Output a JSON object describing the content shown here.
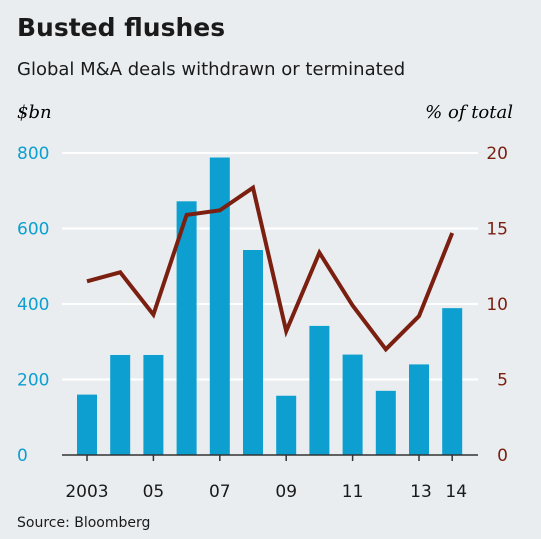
{
  "chart_data": {
    "type": "bar",
    "title": "Busted flushes",
    "subtitle": "Global M&A deals withdrawn or terminated",
    "source": "Source: Bloomberg",
    "left_axis": {
      "unit": "$bn",
      "ylim": [
        0,
        800
      ],
      "ticks": [
        "0",
        "200",
        "400",
        "600",
        "800"
      ],
      "tick_values": [
        0,
        200,
        400,
        600,
        800
      ]
    },
    "right_axis": {
      "unit": "% of total",
      "ylim": [
        0,
        20
      ],
      "ticks": [
        "0",
        "5",
        "10",
        "15",
        "20"
      ],
      "tick_values": [
        0,
        5,
        10,
        15,
        20
      ]
    },
    "x": [
      2003,
      2004,
      2005,
      2006,
      2007,
      2008,
      2009,
      2010,
      2011,
      2012,
      2013,
      2014
    ],
    "x_tick_labels": [
      {
        "year": 2003,
        "label": "2003"
      },
      {
        "year": 2005,
        "label": "05"
      },
      {
        "year": 2007,
        "label": "07"
      },
      {
        "year": 2009,
        "label": "09"
      },
      {
        "year": 2011,
        "label": "11"
      },
      {
        "year": 2013,
        "label": "13"
      },
      {
        "year": 2014,
        "label": "14"
      }
    ],
    "grid": true,
    "series": [
      {
        "type": "bar",
        "axis": "left",
        "values": [
          160,
          265,
          265,
          672,
          788,
          543,
          157,
          342,
          266,
          170,
          240,
          389
        ]
      },
      {
        "type": "line",
        "axis": "right",
        "values": [
          11.5,
          12.1,
          9.3,
          15.9,
          16.2,
          17.7,
          8.2,
          13.4,
          9.9,
          7.0,
          9.2,
          14.7
        ]
      }
    ],
    "colors": {
      "background": "#e9edf0",
      "bars": "#0c9fcf",
      "line": "#7b1f10",
      "left_axis_text": "#0c9fcf",
      "right_axis_text": "#7b1f10",
      "grid": "#ffffff",
      "baseline": "#333333"
    }
  }
}
